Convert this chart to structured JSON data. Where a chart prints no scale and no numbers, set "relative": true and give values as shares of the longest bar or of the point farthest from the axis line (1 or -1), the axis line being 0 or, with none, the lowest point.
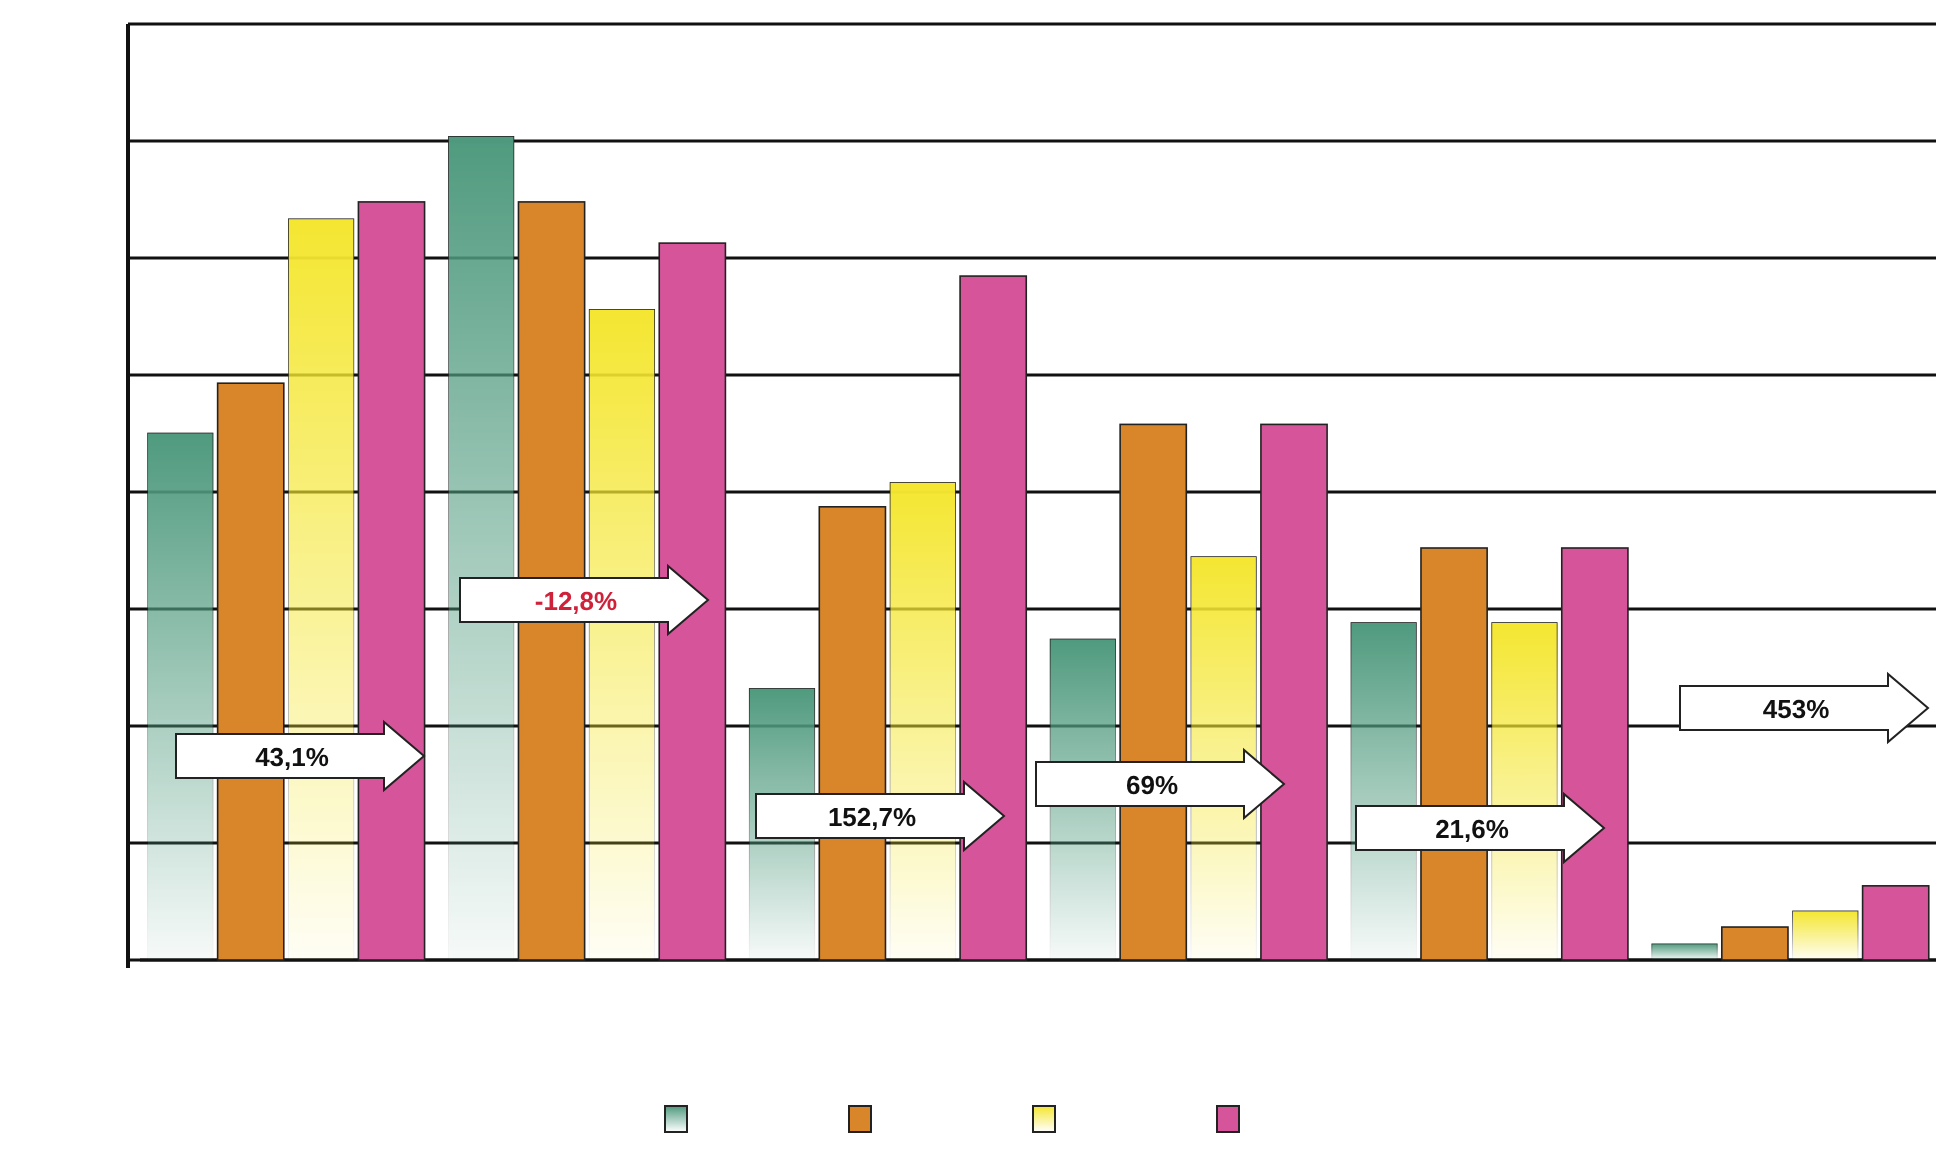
{
  "chart_data": {
    "type": "bar",
    "relative": true,
    "grid": "y",
    "categories": [
      null,
      null,
      null,
      null,
      null,
      null
    ],
    "series": [
      {
        "color": "#4f9a7e",
        "values": [
          0.64,
          1,
          0.33,
          0.39,
          0.41,
          0.02
        ]
      },
      {
        "color": "#d9862a",
        "values": [
          0.7,
          0.92,
          0.55,
          0.65,
          0.5,
          0.04
        ]
      },
      {
        "color": "#f4e630",
        "values": [
          0.9,
          0.79,
          0.58,
          0.49,
          0.41,
          0.06
        ]
      },
      {
        "color": "#d6559a",
        "values": [
          0.92,
          0.87,
          0.83,
          0.65,
          0.5,
          0.09
        ]
      }
    ],
    "annotations": [
      "43,1%",
      "-12,8%",
      "152,7%",
      "69%",
      "21,6%",
      "453%"
    ]
  }
}
